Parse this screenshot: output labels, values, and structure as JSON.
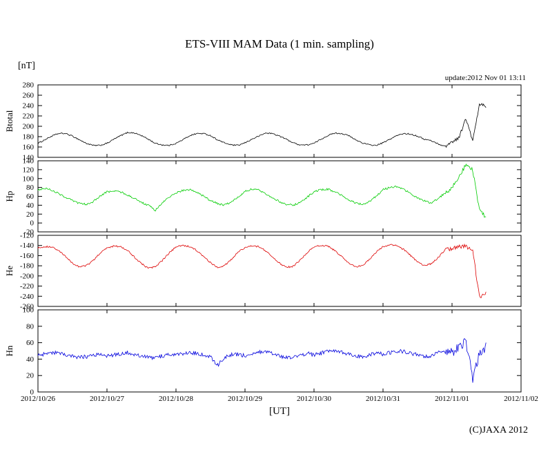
{
  "title": "ETS-VIII MAM Data (1 min. sampling)",
  "unit_label": "[nT]",
  "update_label": "update:2012 Nov 01 13:11",
  "xaxis_label": "[UT]",
  "copyright": "(C)JAXA 2012",
  "chart_data": {
    "type": "line",
    "title": "ETS-VIII MAM Data (1 min. sampling)",
    "xlabel": "[UT]",
    "ylabel": "[nT]",
    "x_start_day": 0,
    "x_end_day": 7,
    "x_tick_labels": [
      "2012/10/26",
      "2012/10/27",
      "2012/10/28",
      "2012/10/29",
      "2012/10/30",
      "2012/10/31",
      "2012/11/01",
      "2012/11/02"
    ],
    "sample_step_days": 0.1,
    "storm_start_day": 5.9,
    "grid": false,
    "legend": "none",
    "panels": [
      {
        "name": "Btotal",
        "color": "#000000",
        "ylim": [
          140,
          280
        ],
        "ytick_step": 20,
        "noise": 1.2,
        "values": [
          167,
          174,
          181,
          186,
          186,
          181,
          174,
          167,
          163,
          163,
          167,
          175,
          182,
          188,
          187,
          182,
          175,
          167,
          164,
          163,
          167,
          174,
          182,
          186,
          186,
          182,
          174,
          168,
          164,
          163,
          168,
          175,
          181,
          187,
          186,
          181,
          175,
          168,
          164,
          164,
          167,
          175,
          182,
          187,
          186,
          182,
          174,
          168,
          164,
          163,
          168,
          175,
          182,
          186,
          185,
          181,
          175,
          172,
          166,
          161,
          170,
          178,
          215,
          172,
          243,
          238
        ]
      },
      {
        "name": "Hp",
        "color": "#00cc00",
        "ylim": [
          -20,
          140
        ],
        "ytick_step": 20,
        "noise": 2.2,
        "values": [
          75,
          78,
          74,
          66,
          58,
          50,
          44,
          42,
          48,
          60,
          70,
          72,
          70,
          63,
          55,
          46,
          40,
          28,
          45,
          58,
          68,
          73,
          75,
          70,
          60,
          50,
          44,
          40,
          47,
          58,
          72,
          76,
          74,
          66,
          57,
          48,
          42,
          40,
          46,
          58,
          70,
          75,
          76,
          70,
          62,
          52,
          45,
          42,
          48,
          60,
          75,
          80,
          82,
          76,
          66,
          56,
          50,
          45,
          55,
          68,
          80,
          105,
          132,
          118,
          25,
          12
        ]
      },
      {
        "name": "He",
        "color": "#dd0000",
        "ylim": [
          -260,
          -120
        ],
        "ytick_step": 20,
        "noise": 1.6,
        "values": [
          -145,
          -142,
          -143,
          -150,
          -162,
          -175,
          -182,
          -180,
          -170,
          -155,
          -145,
          -141,
          -142,
          -150,
          -163,
          -176,
          -185,
          -182,
          -170,
          -155,
          -143,
          -140,
          -142,
          -150,
          -162,
          -174,
          -183,
          -180,
          -168,
          -153,
          -144,
          -141,
          -142,
          -151,
          -163,
          -175,
          -183,
          -181,
          -169,
          -154,
          -143,
          -140,
          -141,
          -150,
          -162,
          -174,
          -182,
          -180,
          -168,
          -153,
          -142,
          -139,
          -140,
          -148,
          -160,
          -172,
          -180,
          -176,
          -164,
          -148,
          -146,
          -142,
          -141,
          -150,
          -245,
          -232
        ]
      },
      {
        "name": "Hn",
        "color": "#0000dd",
        "ylim": [
          0,
          100
        ],
        "ytick_step": 20,
        "noise": 2.4,
        "values": [
          44,
          46,
          48,
          47,
          45,
          43,
          42,
          43,
          45,
          46,
          44,
          45,
          47,
          48,
          46,
          44,
          42,
          41,
          44,
          46,
          45,
          46,
          48,
          47,
          45,
          43,
          32,
          42,
          45,
          46,
          44,
          46,
          48,
          49,
          47,
          44,
          42,
          42,
          45,
          47,
          45,
          47,
          50,
          51,
          49,
          46,
          44,
          43,
          45,
          47,
          46,
          48,
          50,
          49,
          47,
          45,
          43,
          44,
          48,
          50,
          48,
          55,
          63,
          15,
          48,
          55
        ]
      }
    ]
  }
}
